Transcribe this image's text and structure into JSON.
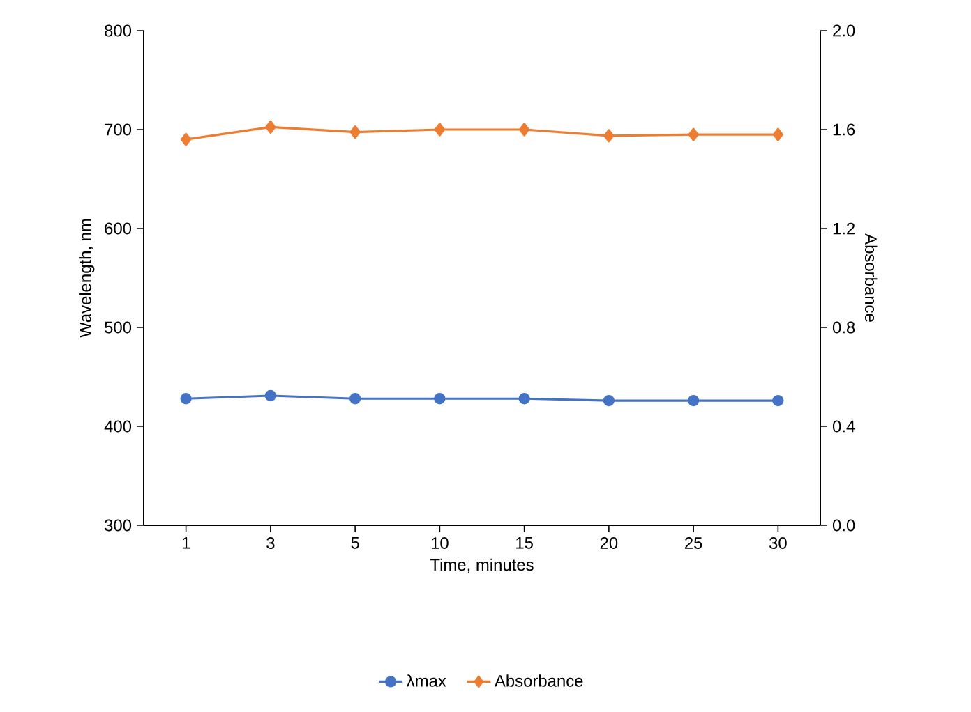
{
  "chart_data": {
    "type": "line",
    "xlabel": "Time, minutes",
    "ylabel": "Wavelength, nm",
    "y2label": "Absorbance",
    "categories": [
      "1",
      "3",
      "5",
      "10",
      "15",
      "20",
      "25",
      "30"
    ],
    "series": [
      {
        "name": "λmax",
        "color": "#4472c4",
        "marker": "circle",
        "values": [
          428,
          431,
          428,
          428,
          428,
          426,
          426,
          426
        ]
      },
      {
        "name": "Absorbance",
        "color": "#ed7d31",
        "marker": "diamond",
        "axis": "y2",
        "values": [
          1.56,
          1.61,
          1.59,
          1.6,
          1.6,
          1.575,
          1.58,
          1.58
        ]
      }
    ],
    "ylim": [
      300,
      800
    ],
    "yticks": [
      300,
      400,
      500,
      600,
      700,
      800
    ],
    "y2lim": [
      0,
      2
    ],
    "y2ticks": [
      {
        "value": 0,
        "label": "0.0"
      },
      {
        "value": 0.4,
        "label": "0.4"
      },
      {
        "value": 0.8,
        "label": "0.8"
      },
      {
        "value": 1.2,
        "label": "1.2"
      },
      {
        "value": 1.6,
        "label": "1.6"
      },
      {
        "value": 2,
        "label": "2.0"
      }
    ],
    "grid": false,
    "legend": "bottom",
    "line_style": "solid"
  }
}
